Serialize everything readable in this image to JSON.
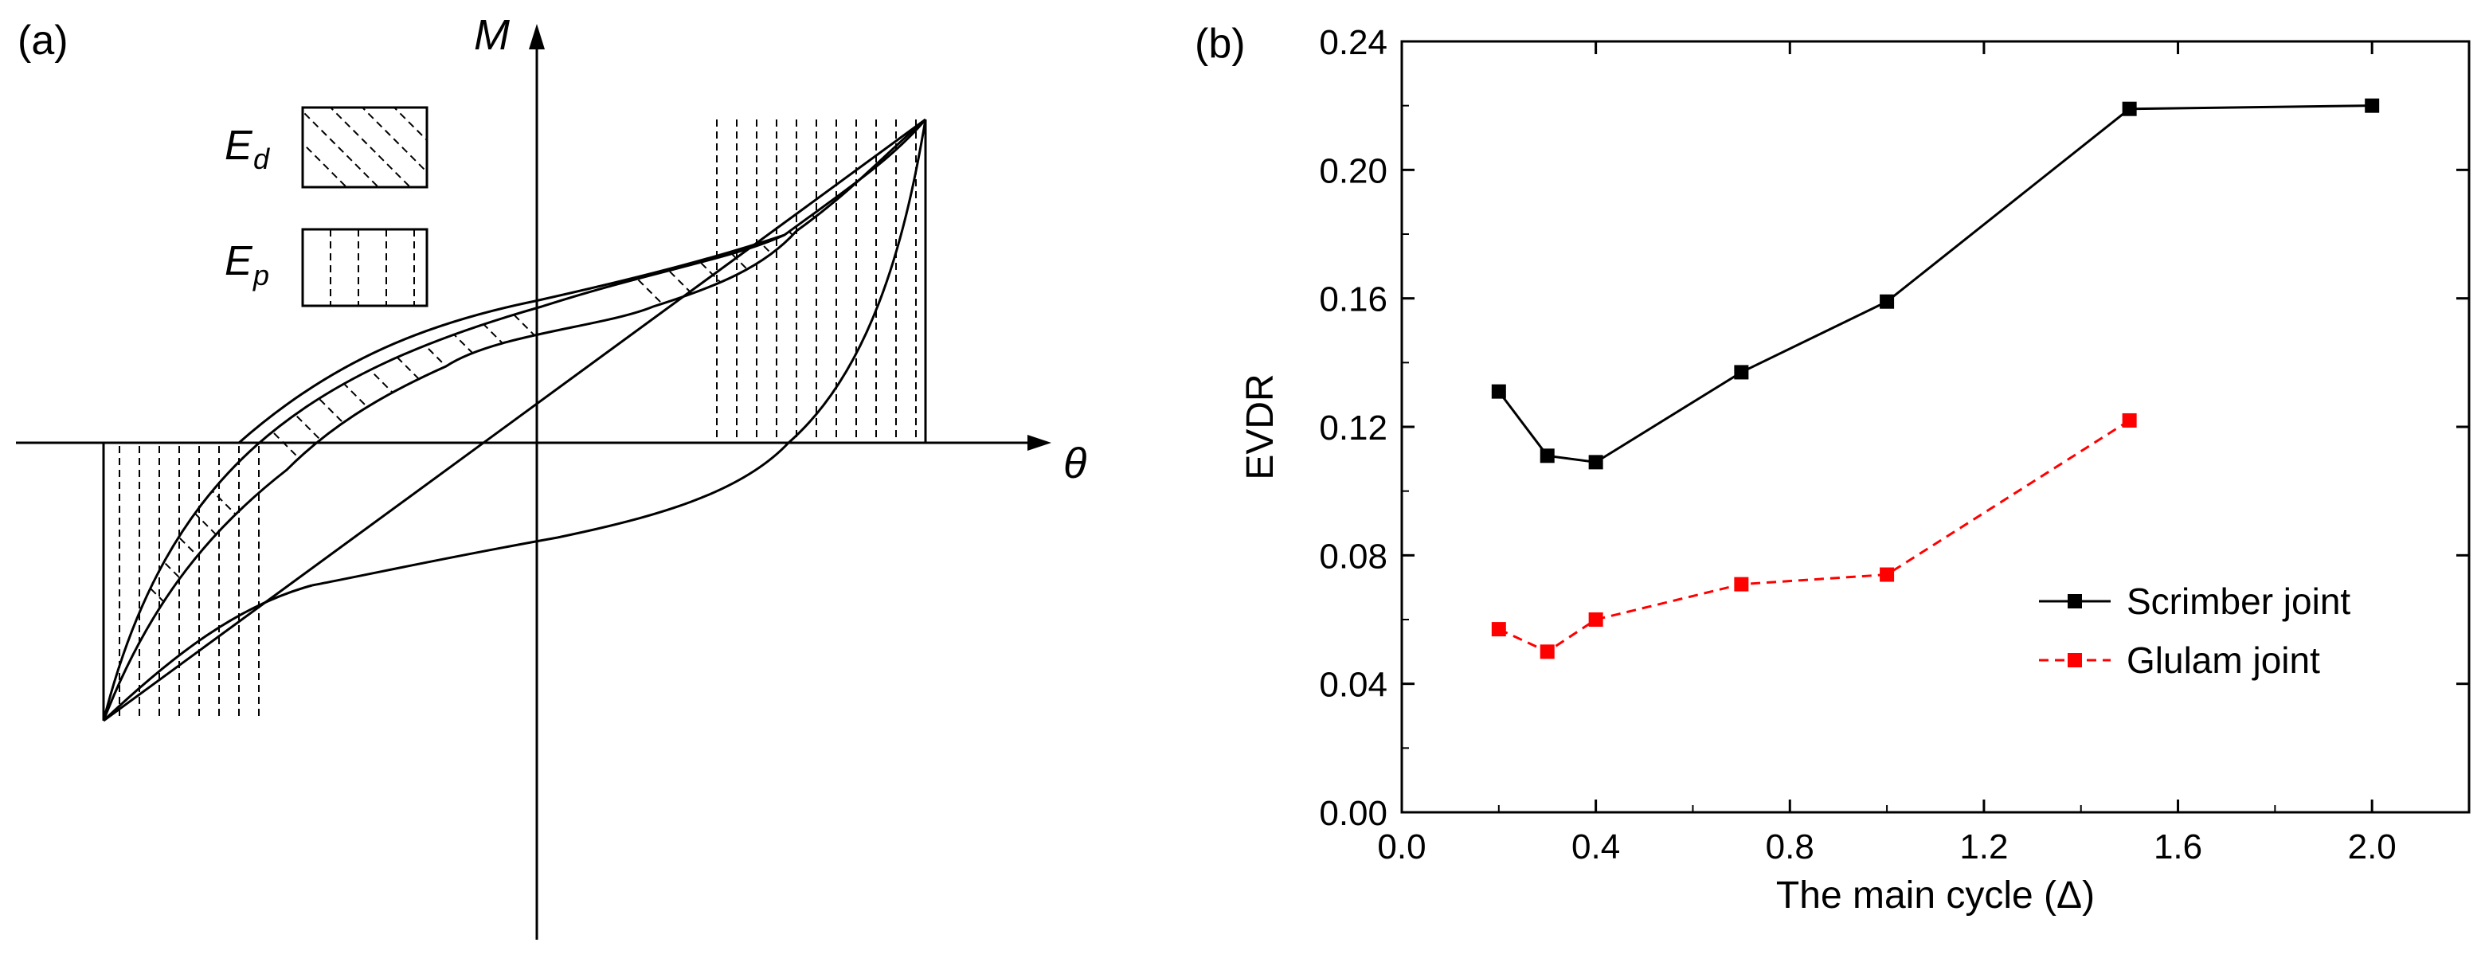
{
  "panel_a": {
    "label": "(a)",
    "axis_y_label": "M",
    "axis_x_label": "θ",
    "legend": [
      {
        "symbol": "E",
        "subscript": "d",
        "pattern": "diagonal-hatch"
      },
      {
        "symbol": "E",
        "subscript": "p",
        "pattern": "vertical-hatch"
      }
    ]
  },
  "panel_b": {
    "label": "(b)"
  },
  "chart_data": {
    "type": "line",
    "title": "",
    "xlabel": "The main cycle (Δ)",
    "ylabel": "EVDR",
    "xlim": [
      0.0,
      2.2
    ],
    "ylim": [
      0.0,
      0.24
    ],
    "xticks": [
      0.0,
      0.4,
      0.8,
      1.2,
      1.6,
      2.0
    ],
    "xtick_labels": [
      "0.0",
      "0.4",
      "0.8",
      "1.2",
      "1.6",
      "2.0"
    ],
    "yticks": [
      0.0,
      0.04,
      0.08,
      0.12,
      0.16,
      0.2,
      0.24
    ],
    "ytick_labels": [
      "0.00",
      "0.04",
      "0.08",
      "0.12",
      "0.16",
      "0.20",
      "0.24"
    ],
    "grid": false,
    "legend_position": "right",
    "series": [
      {
        "name": "Scrimber joint",
        "color": "#000000",
        "line_style": "solid",
        "marker": "square",
        "x": [
          0.2,
          0.3,
          0.4,
          0.7,
          1.0,
          1.5,
          2.0
        ],
        "y": [
          0.131,
          0.111,
          0.109,
          0.137,
          0.159,
          0.219,
          0.22
        ]
      },
      {
        "name": "Glulam joint",
        "color": "#ff0000",
        "line_style": "dashed",
        "marker": "square",
        "x": [
          0.2,
          0.3,
          0.4,
          0.7,
          1.0,
          1.5
        ],
        "y": [
          0.057,
          0.05,
          0.06,
          0.071,
          0.074,
          0.122
        ]
      }
    ]
  }
}
